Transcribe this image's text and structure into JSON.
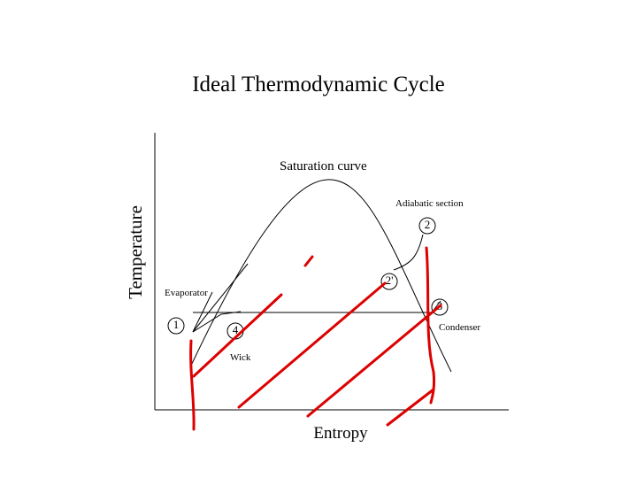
{
  "title": "Ideal Thermodynamic Cycle",
  "diagram": {
    "y_axis_label": "Temperature",
    "x_axis_label": "Entropy",
    "labels": {
      "saturation_curve": "Saturation curve",
      "adiabatic_section": "Adiabatic section",
      "evaporator": "Evaporator",
      "condenser": "Condenser",
      "wick": "Wick"
    },
    "points": [
      "1",
      "2",
      "2'",
      "3",
      "4"
    ]
  }
}
